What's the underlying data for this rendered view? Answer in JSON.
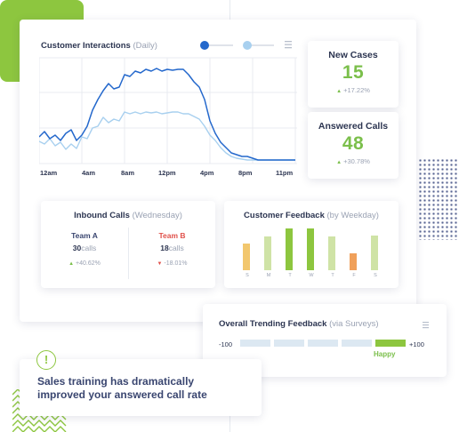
{
  "main_chart": {
    "title": "Customer Interactions",
    "title_sub": "(Daily)",
    "x_labels": [
      "12am",
      "4am",
      "8am",
      "12pm",
      "4pm",
      "8pm",
      "11pm"
    ],
    "colors": {
      "series_dark": "#2468cc",
      "series_light": "#a8d0ef",
      "grid": "#e8ebf0"
    },
    "menu_icon": "hamburger-menu-icon"
  },
  "new_cases": {
    "label": "New Cases",
    "value": "15",
    "change": "+17.22%"
  },
  "answered_calls": {
    "label": "Answered Calls",
    "value": "48",
    "change": "+30.78%"
  },
  "inbound": {
    "title": "Inbound Calls",
    "title_sub": "(Wednesday)",
    "team_a": {
      "name": "Team A",
      "count": "30",
      "unit": "calls",
      "change": "+40.62%"
    },
    "team_b": {
      "name": "Team B",
      "count": "18",
      "unit": "calls",
      "change": "-18.01%"
    }
  },
  "feedback": {
    "title": "Customer Feedback",
    "title_sub": "(by Weekday)",
    "days": [
      "S",
      "M",
      "T",
      "W",
      "T",
      "F",
      "S"
    ]
  },
  "trending": {
    "title": "Overall Trending Feedback",
    "title_sub": "(via Surveys)",
    "min_label": "-100",
    "max_label": "+100",
    "happy_label": "Happy",
    "active_segment": 5,
    "segments": 6
  },
  "alert": {
    "text_line1": "Sales training has dramatically",
    "text_line2": "improved your answered call rate",
    "icon": "exclamation-circle-icon"
  },
  "colors": {
    "accent_green": "#7bbf4b",
    "accent_blue": "#2468cc",
    "red": "#e0504a",
    "orange": "#f0a05a",
    "yellow": "#f2c76e"
  }
}
